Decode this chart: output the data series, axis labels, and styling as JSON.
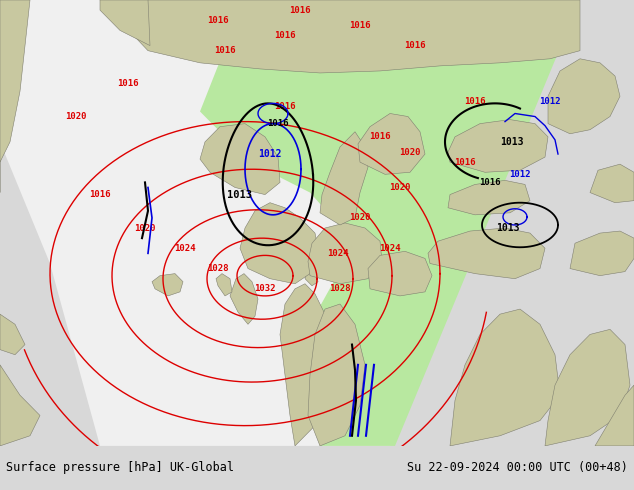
{
  "title_left": "Surface pressure [hPa] UK-Global",
  "title_right": "Su 22-09-2024 00:00 UTC (00+48)",
  "bg_outer": "#b8b890",
  "sea_color": "#c8ccd8",
  "land_color": "#c8c8a0",
  "white_forecast_color": "#f0f0f0",
  "green_region_color": "#b8e8a0",
  "footer_bg": "#d8d8d8",
  "footer_text_color": "#000000",
  "footer_fontsize": 8.5,
  "red_isobar_color": "#dd0000",
  "black_isobar_color": "#000000",
  "blue_line_color": "#0000dd"
}
